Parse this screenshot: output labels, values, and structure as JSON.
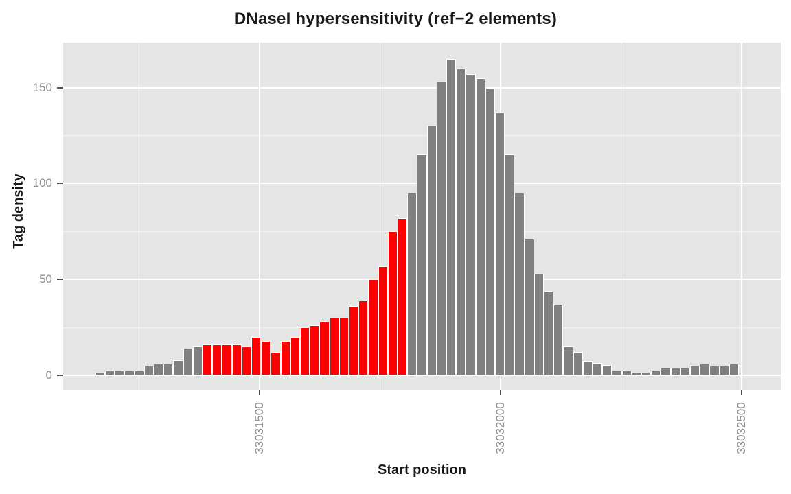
{
  "chart_data": {
    "type": "bar",
    "title": "DNaseI hypersensitivity (ref−2 elements)",
    "xlabel": "Start position",
    "ylabel": "Tag density",
    "x_start": 33031160,
    "bin_size": 20,
    "values": [
      1.5,
      2.5,
      2.5,
      2.5,
      2.5,
      5,
      6,
      6,
      8,
      14,
      15,
      16,
      16,
      16,
      16,
      15,
      20,
      18,
      12,
      18,
      20,
      25,
      26,
      28,
      30,
      30,
      36,
      39,
      50,
      57,
      75,
      82,
      95,
      115,
      130,
      153,
      165,
      160,
      157,
      155,
      150,
      137,
      115,
      95,
      71,
      53,
      44,
      37,
      15,
      12,
      7.5,
      6.5,
      5.5,
      2.5,
      2.5,
      1.5,
      1.5,
      2.5,
      4,
      4,
      4,
      5,
      6,
      5,
      5,
      6
    ],
    "highlight_start_index": 11,
    "highlight_end_index": 31,
    "x_ticks": [
      {
        "value": 33031500,
        "label": "33031500"
      },
      {
        "value": 33032000,
        "label": "33032000"
      },
      {
        "value": 33032500,
        "label": "33032500"
      }
    ],
    "x_minor_ticks": [
      33031250,
      33031750,
      33032250
    ],
    "y_ticks": [
      {
        "value": 0,
        "label": "0"
      },
      {
        "value": 50,
        "label": "50"
      },
      {
        "value": 100,
        "label": "100"
      },
      {
        "value": 150,
        "label": "150"
      }
    ],
    "y_minor_ticks": [
      25,
      75,
      125
    ],
    "ylim": [
      0,
      165
    ],
    "grid": true,
    "legend": "none",
    "colors": {
      "bar": "#808080",
      "highlight": "#ff0000",
      "bar_border": "#ffffff",
      "panel_bg": "#e5e5e5",
      "gridline": "#ffffff",
      "tick_label": "#8c8c8c",
      "tick_mark": "#4d4d4d",
      "text": "#1a1a1a"
    }
  }
}
